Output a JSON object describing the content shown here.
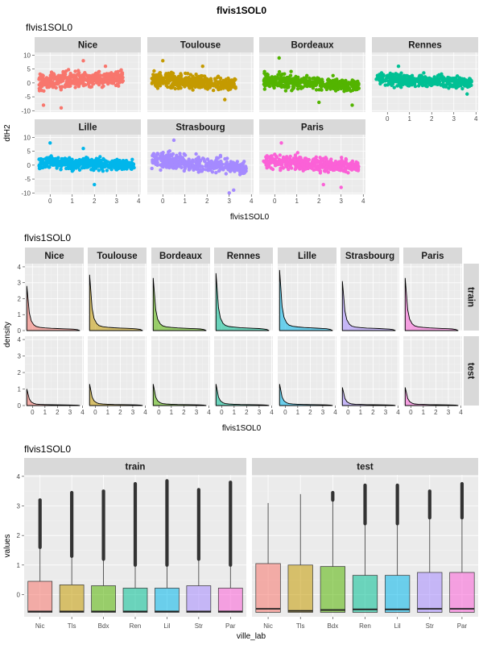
{
  "figure": {
    "main_title": "flvis1SOL0",
    "scatter_subtitle": "flvis1SOL0",
    "density_subtitle": "flvis1SOL0",
    "box_subtitle": "flvis1SOL0"
  },
  "chart_data": [
    {
      "type": "scatter",
      "title": "flvis1SOL0",
      "xlabel": "flvis1SOL0",
      "ylabel": "dtH2",
      "xlim": [
        -0.7,
        4.1
      ],
      "ylim": [
        -10.5,
        11
      ],
      "x_ticks": [
        0,
        1,
        2,
        3,
        4
      ],
      "y_ticks": [
        -10,
        -5,
        0,
        5,
        10
      ],
      "facets": [
        {
          "name": "Nice",
          "color": "#F8766D",
          "x_range": [
            -0.5,
            3.3
          ],
          "center_start": 0.5,
          "center_end": 2.0,
          "spread": 4.0,
          "outliers": [
            [
              0.5,
              -9
            ],
            [
              1.5,
              8
            ],
            [
              2.5,
              6
            ],
            [
              -0.3,
              -8
            ]
          ]
        },
        {
          "name": "Toulouse",
          "color": "#C49A00",
          "x_range": [
            -0.5,
            3.3
          ],
          "center_start": 1.0,
          "center_end": -0.5,
          "spread": 3.5,
          "outliers": [
            [
              0.0,
              8
            ],
            [
              1.8,
              6
            ],
            [
              2.8,
              -6
            ]
          ]
        },
        {
          "name": "Bordeaux",
          "color": "#53B400",
          "x_range": [
            -0.5,
            3.8
          ],
          "center_start": 1.0,
          "center_end": -1.0,
          "spread": 3.5,
          "outliers": [
            [
              2.0,
              -7
            ],
            [
              3.5,
              -8
            ],
            [
              0.2,
              9
            ]
          ]
        },
        {
          "name": "Rennes",
          "color": "#00C094",
          "x_range": [
            -0.5,
            3.8
          ],
          "center_start": 1.5,
          "center_end": 0.0,
          "spread": 3.0,
          "outliers": [
            [
              0.5,
              6
            ],
            [
              3.6,
              -4
            ]
          ]
        },
        {
          "name": "Lille",
          "color": "#00B6EB",
          "x_range": [
            -0.5,
            3.8
          ],
          "center_start": 1.0,
          "center_end": 0.0,
          "spread": 3.0,
          "outliers": [
            [
              0.0,
              8
            ],
            [
              1.5,
              6
            ],
            [
              2.0,
              -7
            ]
          ]
        },
        {
          "name": "Strasbourg",
          "color": "#A58AFF",
          "x_range": [
            -0.5,
            3.8
          ],
          "center_start": 2.0,
          "center_end": -1.0,
          "spread": 4.0,
          "outliers": [
            [
              3.0,
              -10
            ],
            [
              3.2,
              -9
            ],
            [
              0.5,
              9
            ]
          ]
        },
        {
          "name": "Paris",
          "color": "#FB61D7",
          "x_range": [
            -0.5,
            3.8
          ],
          "center_start": 1.5,
          "center_end": -0.5,
          "spread": 3.5,
          "outliers": [
            [
              3.0,
              -8
            ],
            [
              2.2,
              -7
            ],
            [
              0.3,
              8
            ]
          ]
        }
      ]
    },
    {
      "type": "area",
      "title": "flvis1SOL0",
      "xlabel": "flvis1SOL0",
      "ylabel": "density",
      "xlim": [
        -0.6,
        4.1
      ],
      "ylim": [
        0,
        4.2
      ],
      "x_ticks": [
        0,
        1,
        2,
        3,
        4
      ],
      "y_ticks": [
        0,
        1,
        2,
        3,
        4
      ],
      "columns": [
        "Nice",
        "Toulouse",
        "Bordeaux",
        "Rennes",
        "Lille",
        "Strasbourg",
        "Paris"
      ],
      "colors": [
        "#F8766D",
        "#C49A00",
        "#53B400",
        "#00C094",
        "#00B6EB",
        "#A58AFF",
        "#FB61D7"
      ],
      "rows": [
        {
          "name": "train",
          "peak": [
            2.8,
            3.5,
            3.3,
            3.6,
            3.8,
            3.1,
            3.3
          ]
        },
        {
          "name": "test",
          "peak": [
            1.0,
            1.3,
            1.3,
            1.3,
            1.3,
            1.1,
            1.1
          ]
        }
      ],
      "x": [
        -0.45,
        -0.35,
        -0.25,
        -0.1,
        0.1,
        0.3,
        0.6,
        1.0,
        1.5,
        2.0,
        2.5,
        3.0,
        3.3,
        3.6,
        3.8
      ],
      "shape": [
        1.0,
        0.7,
        0.4,
        0.22,
        0.13,
        0.09,
        0.07,
        0.06,
        0.05,
        0.045,
        0.04,
        0.035,
        0.03,
        0.02,
        0.0
      ]
    },
    {
      "type": "box",
      "title": "flvis1SOL0",
      "xlabel": "ville_lab",
      "ylabel": "values",
      "ylim": [
        -0.75,
        4.05
      ],
      "y_ticks": [
        0,
        1,
        2,
        3,
        4
      ],
      "categories": [
        "Nic",
        "Tls",
        "Bdx",
        "Ren",
        "Lil",
        "Str",
        "Par"
      ],
      "colors": [
        "#F8766D",
        "#C49A00",
        "#53B400",
        "#00C094",
        "#00B6EB",
        "#A58AFF",
        "#FB61D7"
      ],
      "panels": [
        {
          "name": "train",
          "q1": [
            -0.6,
            -0.6,
            -0.6,
            -0.6,
            -0.6,
            -0.6,
            -0.6
          ],
          "median": [
            -0.57,
            -0.57,
            -0.57,
            -0.57,
            -0.57,
            -0.57,
            -0.57
          ],
          "q3": [
            0.45,
            0.33,
            0.3,
            0.22,
            0.22,
            0.3,
            0.22
          ],
          "whisker_high": [
            1.6,
            1.3,
            1.2,
            1.0,
            1.0,
            1.2,
            1.0
          ],
          "outlier_max": [
            3.2,
            3.45,
            3.5,
            3.75,
            3.85,
            3.55,
            3.8
          ]
        },
        {
          "name": "test",
          "q1": [
            -0.6,
            -0.6,
            -0.6,
            -0.6,
            -0.6,
            -0.6,
            -0.6
          ],
          "median": [
            -0.48,
            -0.55,
            -0.52,
            -0.5,
            -0.5,
            -0.48,
            -0.48
          ],
          "q3": [
            1.05,
            1.0,
            0.95,
            0.65,
            0.65,
            0.75,
            0.75
          ],
          "whisker_high": [
            3.1,
            3.4,
            3.2,
            2.4,
            2.4,
            2.6,
            2.6
          ],
          "outlier_max": [
            3.1,
            3.4,
            3.45,
            3.7,
            3.7,
            3.5,
            3.75
          ]
        }
      ]
    }
  ]
}
